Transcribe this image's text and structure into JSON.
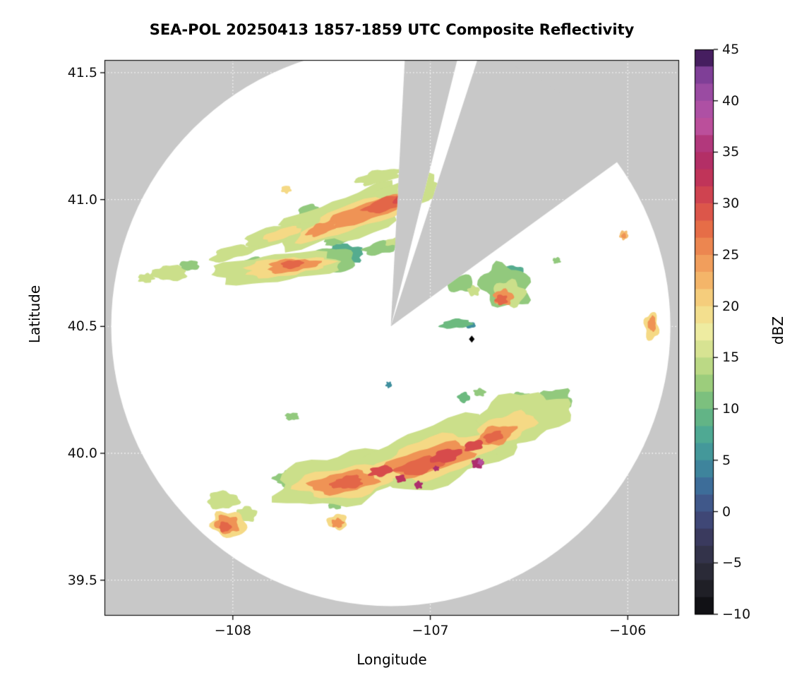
{
  "chart_data": {
    "type": "heatmap",
    "subtype": "radar-composite-reflectivity",
    "title": "SEA-POL 20250413 1857-1859 UTC Composite Reflectivity",
    "xlabel": "Longitude",
    "ylabel": "Latitude",
    "xlim": [
      -108.65,
      -105.74
    ],
    "ylim": [
      39.36,
      41.55
    ],
    "xticks": [
      -108,
      -107,
      -106
    ],
    "xtick_labels": [
      "−108",
      "−107",
      "−106"
    ],
    "yticks": [
      41.5,
      41.0,
      40.5,
      40.0,
      39.5
    ],
    "ytick_labels": [
      "41.5",
      "41.0",
      "40.5",
      "40.0",
      "39.5"
    ],
    "grid": "dotted, light, at major ticks",
    "background_color": "#ffffff",
    "missing_data_color": "#c8c8c8",
    "valid_coverage_color": "#ffffff",
    "colorbar": {
      "label": "dBZ",
      "min": -10,
      "max": 45,
      "ticks": [
        45,
        40,
        35,
        30,
        25,
        20,
        15,
        10,
        5,
        0,
        -5,
        -10
      ],
      "tick_labels": [
        "45",
        "40",
        "35",
        "30",
        "25",
        "20",
        "15",
        "10",
        "5",
        "0",
        "−5",
        "−10"
      ],
      "segments": 33,
      "stops": [
        [
          -10,
          "#0a0a0c"
        ],
        [
          -7.5,
          "#1f1f26"
        ],
        [
          -5,
          "#303040"
        ],
        [
          -2.5,
          "#3a3a5e"
        ],
        [
          0,
          "#414e82"
        ],
        [
          2.5,
          "#3d6d99"
        ],
        [
          5,
          "#3f8f9e"
        ],
        [
          7.5,
          "#4fa993"
        ],
        [
          10,
          "#6cba7f"
        ],
        [
          12.5,
          "#9ccd7c"
        ],
        [
          15,
          "#cbdf8a"
        ],
        [
          17.5,
          "#eeeca1"
        ],
        [
          20,
          "#f5d985"
        ],
        [
          22.5,
          "#f4b569"
        ],
        [
          25,
          "#ef9355"
        ],
        [
          27.5,
          "#e66d47"
        ],
        [
          30,
          "#d74b4b"
        ],
        [
          32.5,
          "#c03459"
        ],
        [
          35,
          "#ad2d6d"
        ],
        [
          37.5,
          "#bb4f9b"
        ],
        [
          40,
          "#a851a8"
        ],
        [
          42.5,
          "#7f3f97"
        ],
        [
          45,
          "#2a0d45"
        ]
      ]
    },
    "radar": {
      "center_lon": -107.2,
      "center_lat": 40.5,
      "radius_deg_lon": 1.416,
      "blocked_sectors_deg_from_north": [
        [
          3,
          14
        ],
        [
          18,
          54
        ]
      ],
      "site_marker": {
        "shape": "diamond",
        "lon": -106.79,
        "lat": 40.45,
        "color": "#000000"
      }
    },
    "echo_format": [
      "lon",
      "lat",
      "rx_deg",
      "ry_deg",
      "rot_deg",
      "dbz"
    ],
    "echoes": [
      [
        -107.4,
        40.935,
        0.38,
        0.085,
        18,
        15
      ],
      [
        -107.1,
        41.03,
        0.17,
        0.055,
        14,
        15
      ],
      [
        -107.26,
        41.09,
        0.12,
        0.025,
        12,
        15
      ],
      [
        -107.38,
        40.93,
        0.3,
        0.05,
        18,
        20
      ],
      [
        -107.31,
        40.955,
        0.22,
        0.035,
        18,
        25
      ],
      [
        -107.21,
        40.985,
        0.13,
        0.026,
        16,
        28
      ],
      [
        -107.12,
        41.005,
        0.07,
        0.02,
        14,
        30
      ],
      [
        -107.55,
        40.885,
        0.08,
        0.022,
        20,
        25
      ],
      [
        -107.62,
        40.96,
        0.05,
        0.02,
        15,
        12
      ],
      [
        -107.78,
        40.86,
        0.18,
        0.035,
        16,
        15
      ],
      [
        -107.75,
        40.865,
        0.1,
        0.02,
        16,
        20
      ],
      [
        -108.0,
        40.79,
        0.12,
        0.025,
        14,
        15
      ],
      [
        -107.9,
        40.75,
        0.08,
        0.02,
        10,
        12
      ],
      [
        -107.33,
        40.89,
        0.04,
        0.015,
        10,
        12
      ],
      [
        -107.73,
        41.04,
        0.025,
        0.015,
        0,
        20
      ],
      [
        -107.78,
        40.73,
        0.33,
        0.055,
        6,
        15
      ],
      [
        -107.73,
        40.735,
        0.22,
        0.035,
        6,
        20
      ],
      [
        -107.7,
        40.74,
        0.13,
        0.025,
        6,
        25
      ],
      [
        -107.7,
        40.745,
        0.055,
        0.016,
        6,
        28
      ],
      [
        -107.5,
        40.76,
        0.12,
        0.05,
        0,
        12
      ],
      [
        -107.44,
        40.785,
        0.1,
        0.04,
        0,
        8
      ],
      [
        -107.42,
        40.79,
        0.055,
        0.025,
        0,
        5
      ],
      [
        -107.25,
        40.81,
        0.09,
        0.025,
        12,
        12
      ],
      [
        -107.18,
        40.835,
        0.05,
        0.015,
        12,
        15
      ],
      [
        -108.32,
        40.71,
        0.09,
        0.03,
        0,
        15
      ],
      [
        -108.22,
        40.74,
        0.05,
        0.02,
        0,
        12
      ],
      [
        -108.44,
        40.69,
        0.04,
        0.018,
        0,
        15
      ],
      [
        -107.48,
        40.84,
        0.06,
        0.02,
        10,
        12
      ],
      [
        -106.62,
        40.66,
        0.13,
        0.08,
        -20,
        12
      ],
      [
        -106.6,
        40.63,
        0.08,
        0.05,
        -10,
        15
      ],
      [
        -106.63,
        40.615,
        0.05,
        0.03,
        0,
        25
      ],
      [
        -106.64,
        40.605,
        0.03,
        0.02,
        0,
        28
      ],
      [
        -106.58,
        40.72,
        0.05,
        0.02,
        0,
        8
      ],
      [
        -106.85,
        40.67,
        0.07,
        0.035,
        0,
        12
      ],
      [
        -106.78,
        40.64,
        0.03,
        0.02,
        0,
        15
      ],
      [
        -106.87,
        40.51,
        0.08,
        0.018,
        5,
        10
      ],
      [
        -106.8,
        40.505,
        0.03,
        0.012,
        0,
        5
      ],
      [
        -106.36,
        40.76,
        0.02,
        0.012,
        0,
        12
      ],
      [
        -106.02,
        40.86,
        0.022,
        0.018,
        0,
        22
      ],
      [
        -106.02,
        40.857,
        0.012,
        0.01,
        0,
        25
      ],
      [
        -105.88,
        40.5,
        0.035,
        0.055,
        0,
        20
      ],
      [
        -105.877,
        40.51,
        0.02,
        0.03,
        0,
        25
      ],
      [
        -107.21,
        40.27,
        0.015,
        0.012,
        0,
        5
      ],
      [
        -107.7,
        40.145,
        0.035,
        0.015,
        0,
        12
      ],
      [
        -106.83,
        40.22,
        0.03,
        0.02,
        0,
        10
      ],
      [
        -106.75,
        40.24,
        0.03,
        0.015,
        0,
        12
      ],
      [
        -106.55,
        40.22,
        0.05,
        0.02,
        10,
        12
      ],
      [
        -106.62,
        40.19,
        0.03,
        0.015,
        0,
        15
      ],
      [
        -107.45,
        39.9,
        0.34,
        0.1,
        10,
        15
      ],
      [
        -106.95,
        40.0,
        0.38,
        0.12,
        14,
        15
      ],
      [
        -106.55,
        40.13,
        0.25,
        0.1,
        18,
        15
      ],
      [
        -106.38,
        40.2,
        0.1,
        0.05,
        20,
        12
      ],
      [
        -107.62,
        39.86,
        0.12,
        0.05,
        0,
        12
      ],
      [
        -107.72,
        39.9,
        0.07,
        0.03,
        0,
        12
      ],
      [
        -107.42,
        39.89,
        0.26,
        0.06,
        8,
        20
      ],
      [
        -106.98,
        39.985,
        0.3,
        0.075,
        14,
        20
      ],
      [
        -106.62,
        40.1,
        0.16,
        0.05,
        18,
        20
      ],
      [
        -107.44,
        39.885,
        0.17,
        0.04,
        8,
        25
      ],
      [
        -107.0,
        39.975,
        0.22,
        0.05,
        14,
        25
      ],
      [
        -106.67,
        40.07,
        0.1,
        0.035,
        18,
        25
      ],
      [
        -107.42,
        39.885,
        0.08,
        0.025,
        8,
        28
      ],
      [
        -107.25,
        39.93,
        0.06,
        0.02,
        10,
        30
      ],
      [
        -107.05,
        39.95,
        0.12,
        0.03,
        12,
        28
      ],
      [
        -106.92,
        39.99,
        0.08,
        0.025,
        14,
        30
      ],
      [
        -106.78,
        40.03,
        0.05,
        0.02,
        14,
        30
      ],
      [
        -106.68,
        40.065,
        0.05,
        0.02,
        16,
        28
      ],
      [
        -106.76,
        39.96,
        0.03,
        0.02,
        0,
        35
      ],
      [
        -106.745,
        39.965,
        0.015,
        0.012,
        0,
        38
      ],
      [
        -107.06,
        39.875,
        0.02,
        0.015,
        0,
        35
      ],
      [
        -107.15,
        39.9,
        0.025,
        0.015,
        0,
        33
      ],
      [
        -106.97,
        39.94,
        0.015,
        0.01,
        0,
        35
      ],
      [
        -108.05,
        39.815,
        0.08,
        0.035,
        0,
        15
      ],
      [
        -108.02,
        39.72,
        0.09,
        0.05,
        -10,
        20
      ],
      [
        -108.03,
        39.72,
        0.06,
        0.035,
        -10,
        25
      ],
      [
        -108.04,
        39.71,
        0.03,
        0.02,
        0,
        28
      ],
      [
        -107.93,
        39.76,
        0.05,
        0.03,
        0,
        15
      ],
      [
        -107.47,
        39.73,
        0.05,
        0.03,
        0,
        20
      ],
      [
        -107.47,
        39.725,
        0.03,
        0.018,
        0,
        25
      ],
      [
        -107.48,
        39.8,
        0.04,
        0.02,
        0,
        12
      ],
      [
        -106.8,
        40.09,
        0.03,
        0.015,
        0,
        8
      ],
      [
        -107.0,
        40.04,
        0.025,
        0.012,
        0,
        10
      ],
      [
        -106.44,
        40.16,
        0.025,
        0.015,
        0,
        8
      ]
    ]
  }
}
